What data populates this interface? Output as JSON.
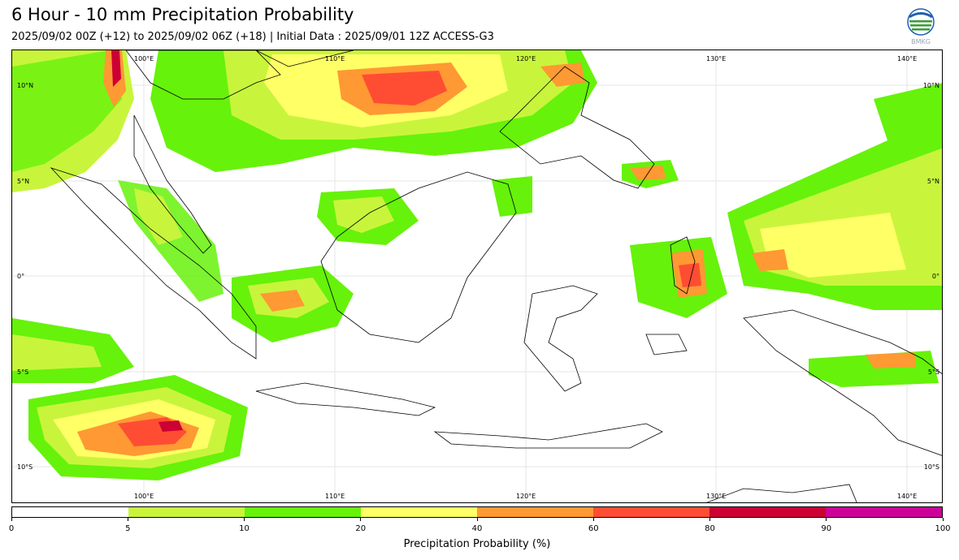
{
  "header": {
    "title": "6 Hour - 10 mm Precipitation Probability",
    "subtitle": "2025/09/02 00Z (+12) to 2025/09/02 06Z (+18) | Initial Data : 2025/09/01 12Z ACCESS-G3"
  },
  "logo": {
    "name": "bmkg-logo",
    "text": "BMKG",
    "colors": [
      "#1f5fb0",
      "#3a9b3a",
      "#ffffff"
    ]
  },
  "map": {
    "lon_labels": [
      "100°E",
      "110°E",
      "120°E",
      "130°E",
      "140°E"
    ],
    "lat_labels": [
      "10°N",
      "5°N",
      "0°",
      "5°S",
      "10°S"
    ],
    "grid": true
  },
  "colorbar": {
    "label": "Precipitation Probability (%)",
    "ticks": [
      "0",
      "5",
      "10",
      "20",
      "40",
      "60",
      "80",
      "90",
      "100"
    ],
    "colors": [
      "#ffffff",
      "#c8f53c",
      "#66f20a",
      "#ffff66",
      "#ff9933",
      "#ff4d33",
      "#cc0033",
      "#cc0099"
    ]
  }
}
